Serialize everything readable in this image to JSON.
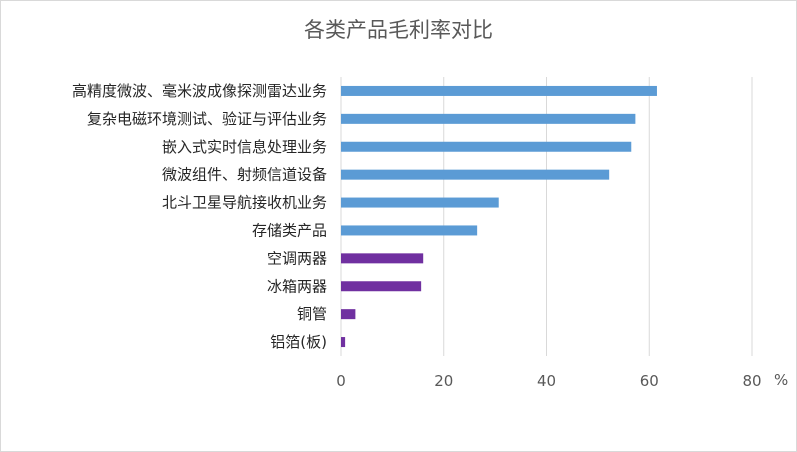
{
  "chart_data": {
    "type": "bar",
    "orientation": "horizontal",
    "title": "各类产品毛利率对比",
    "categories": [
      "高精度微波、毫米波成像探测雷达业务",
      "复杂电磁环境测试、验证与评估业务",
      "嵌入式实时信息处理业务",
      "微波组件、射频信道设备",
      "北斗卫星导航接收机业务",
      "存储类产品",
      "空调两器",
      "冰箱两器",
      "铜管",
      "铝箔(板)"
    ],
    "values": [
      61.5,
      57.3,
      56.5,
      52.2,
      30.7,
      26.5,
      16.0,
      15.6,
      2.8,
      0.8
    ],
    "bar_colors": [
      "#5b9bd5",
      "#5b9bd5",
      "#5b9bd5",
      "#5b9bd5",
      "#5b9bd5",
      "#5b9bd5",
      "#7030a0",
      "#7030a0",
      "#7030a0",
      "#7030a0"
    ],
    "xlim": [
      0,
      80
    ],
    "xticks": [
      0,
      20,
      40,
      60,
      80
    ],
    "xunit": "%",
    "xlabel": "",
    "ylabel": "",
    "grid": "vertical",
    "legend": "none"
  }
}
